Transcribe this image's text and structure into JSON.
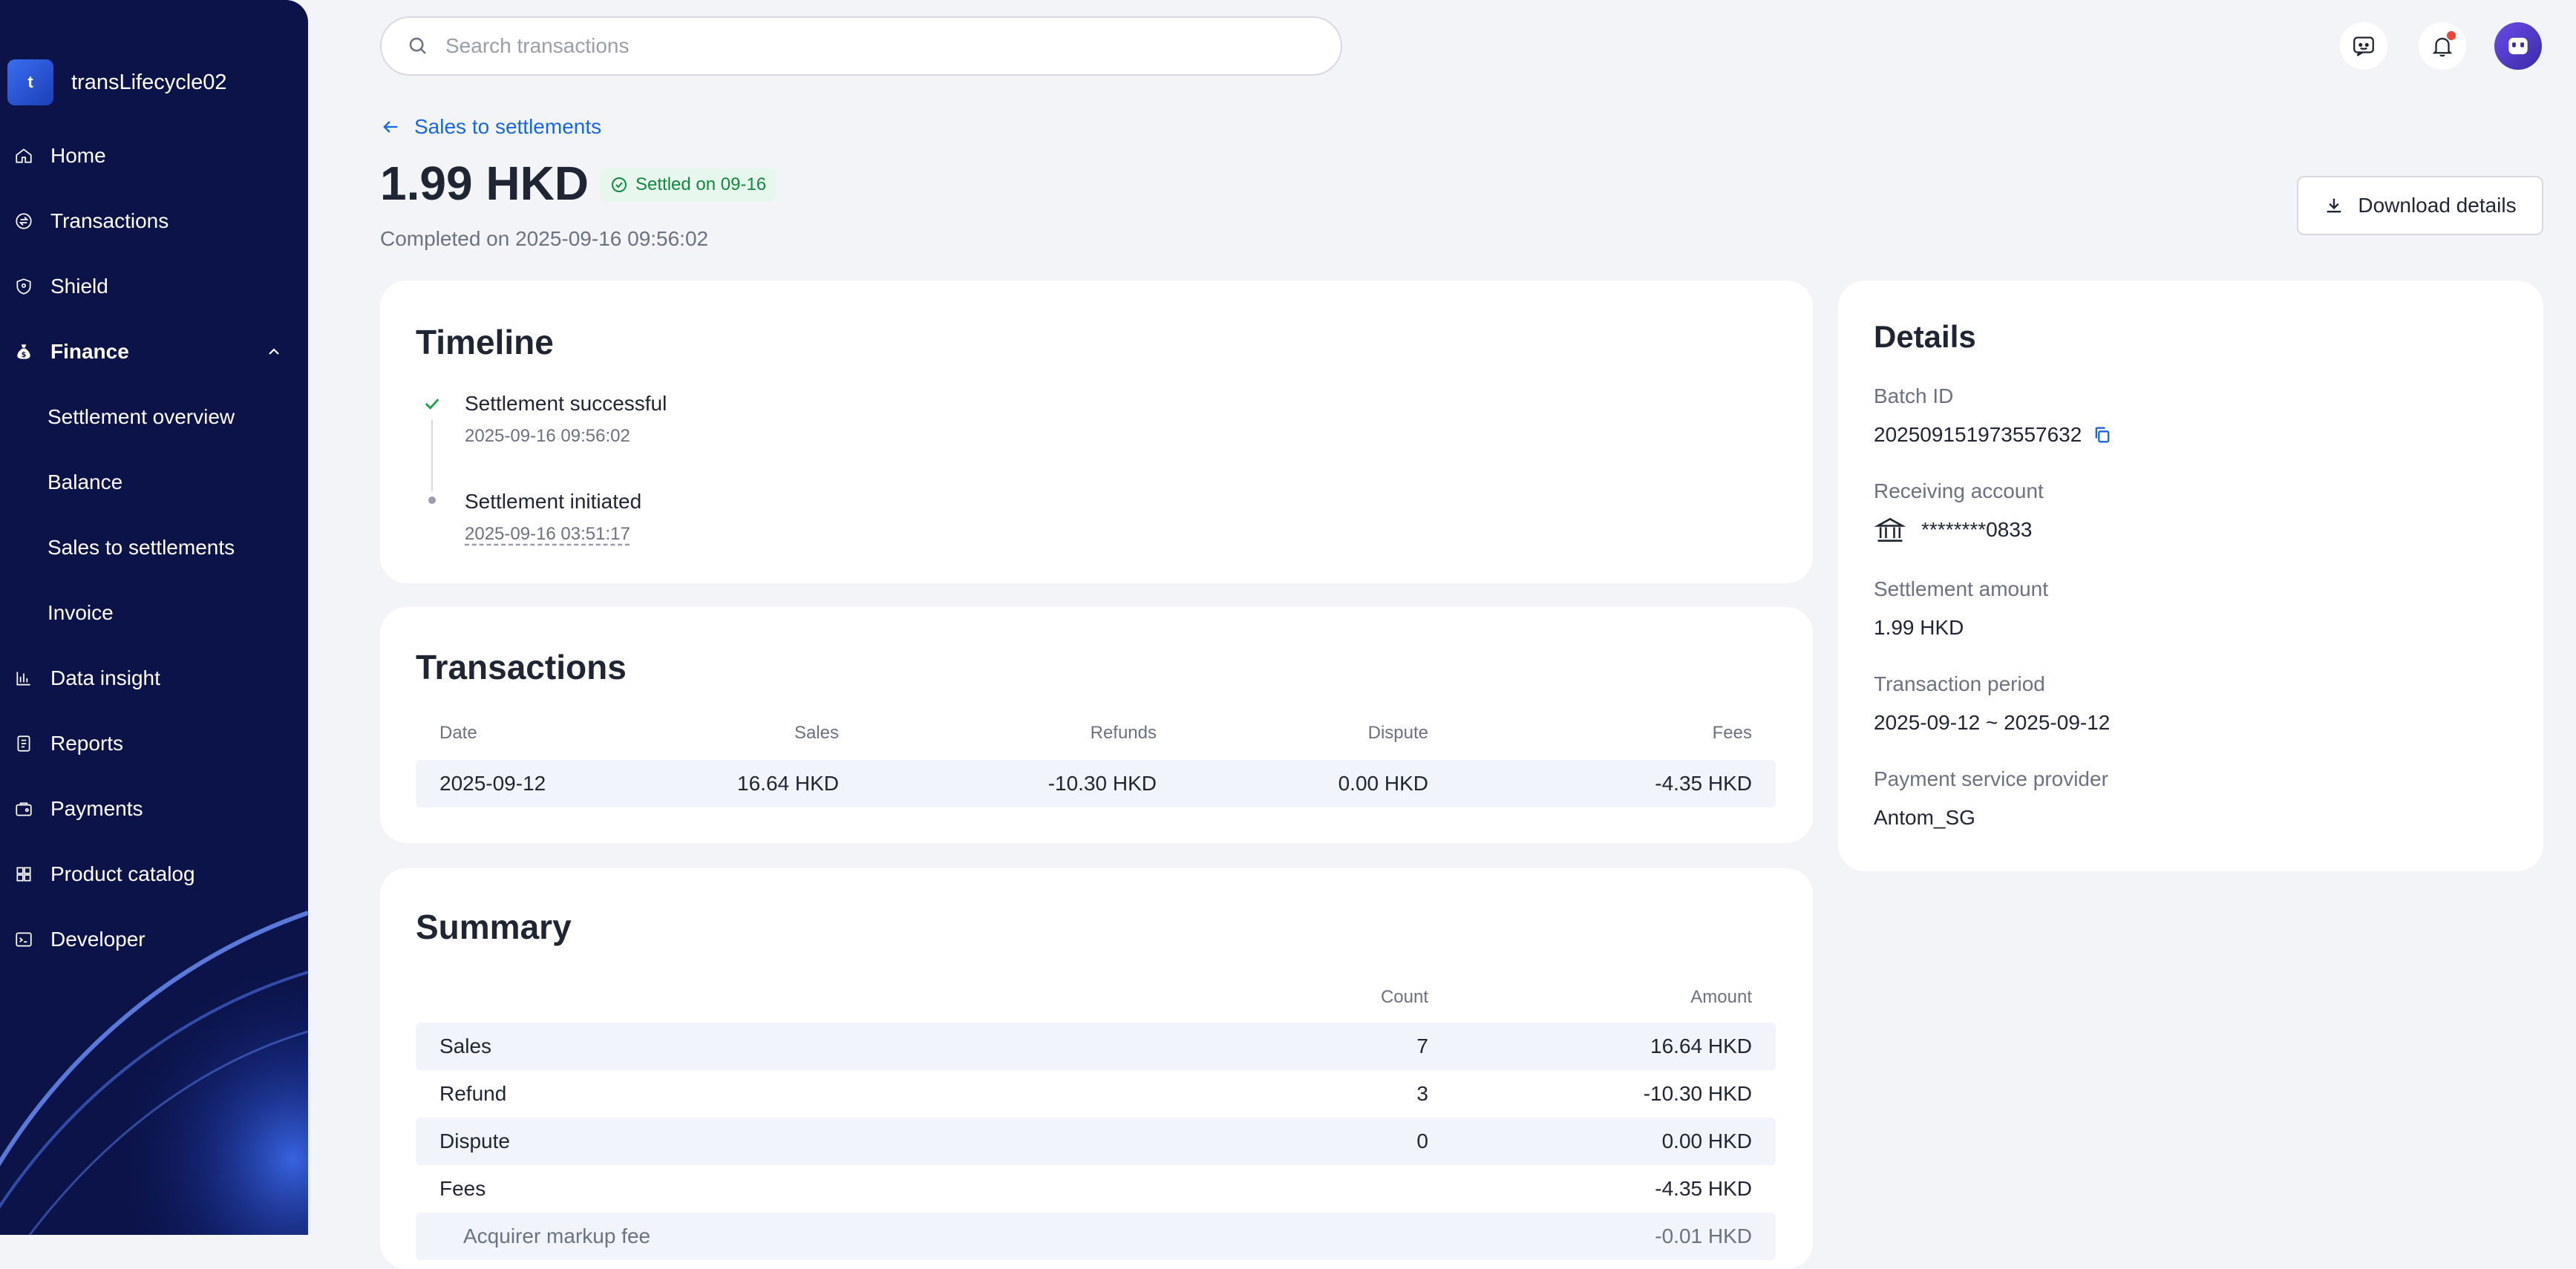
{
  "app": {
    "name": "transLifecycle02",
    "logo_letter": "t"
  },
  "sidebar": {
    "items": [
      {
        "label": "Home",
        "icon": "home-icon"
      },
      {
        "label": "Transactions",
        "icon": "transactions-icon"
      },
      {
        "label": "Shield",
        "icon": "shield-icon"
      },
      {
        "label": "Finance",
        "icon": "finance-icon",
        "expanded": true
      },
      {
        "label": "Settlement overview"
      },
      {
        "label": "Balance"
      },
      {
        "label": "Sales to settlements"
      },
      {
        "label": "Invoice"
      },
      {
        "label": "Data insight",
        "icon": "data-insight-icon"
      },
      {
        "label": "Reports",
        "icon": "reports-icon"
      },
      {
        "label": "Payments",
        "icon": "payments-icon"
      },
      {
        "label": "Product catalog",
        "icon": "product-catalog-icon"
      },
      {
        "label": "Developer",
        "icon": "developer-icon"
      }
    ]
  },
  "search": {
    "placeholder": "Search transactions"
  },
  "header": {
    "back_label": "Sales to settlements",
    "amount": "1.99 HKD",
    "status": "Settled on 09-16",
    "completed": "Completed on 2025-09-16 09:56:02",
    "download_label": "Download details"
  },
  "timeline": {
    "title": "Timeline",
    "events": [
      {
        "label": "Settlement successful",
        "time": "2025-09-16 09:56:02"
      },
      {
        "label": "Settlement initiated",
        "time": "2025-09-16 03:51:17"
      }
    ]
  },
  "transactions": {
    "title": "Transactions",
    "columns": [
      "Date",
      "Sales",
      "Refunds",
      "Dispute",
      "Fees"
    ],
    "rows": [
      [
        "2025-09-12",
        "16.64 HKD",
        "-10.30 HKD",
        "0.00 HKD",
        "-4.35 HKD"
      ]
    ]
  },
  "summary": {
    "title": "Summary",
    "columns": [
      "",
      "Count",
      "Amount"
    ],
    "rows": [
      [
        "Sales",
        "7",
        "16.64 HKD"
      ],
      [
        "Refund",
        "3",
        "-10.30 HKD"
      ],
      [
        "Dispute",
        "0",
        "0.00 HKD"
      ],
      [
        "Fees",
        "",
        "-4.35 HKD"
      ],
      [
        "Acquirer markup fee",
        "",
        "-0.01 HKD"
      ]
    ]
  },
  "details": {
    "title": "Details",
    "batch_id_label": "Batch ID",
    "batch_id": "202509151973557632",
    "receiving_account_label": "Receiving account",
    "receiving_account": "********0833",
    "settlement_amount_label": "Settlement amount",
    "settlement_amount": "1.99 HKD",
    "transaction_period_label": "Transaction period",
    "transaction_period": "2025-09-12 ~ 2025-09-12",
    "psp_label": "Payment service provider",
    "psp": "Antom_SG"
  },
  "colors": {
    "sidebar_bg": "#0b1348",
    "accent": "#1a66e5",
    "success": "#0f8a3e",
    "page_bg": "#f3f4f8"
  }
}
